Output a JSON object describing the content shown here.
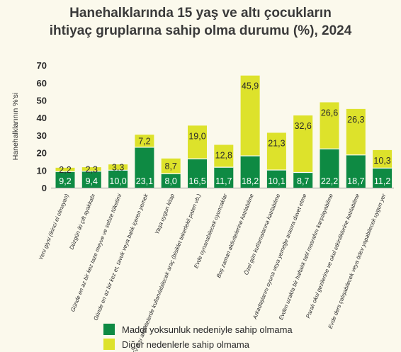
{
  "chart_data": {
    "type": "bar",
    "stacked": true,
    "title_lines": [
      "Hanehalklarında 15 yaş ve altı çocukların",
      "ihtiyaç gruplarına sahip olma durumu (%), 2024"
    ],
    "ylabel": "Hanehalklarının %'si",
    "xlabel": "",
    "ylim": [
      0,
      70
    ],
    "yticks": [
      0,
      10,
      20,
      30,
      40,
      50,
      60,
      70
    ],
    "grid": false,
    "legend_position": "bottom",
    "categories": [
      "Yeni giysi (ikinci el olmayan)",
      "Düzgün iki çift ayakkabı",
      "Günde en az bir kez taze meyve ve sebze tüketimi",
      "Günde en az bir kez et, tavuk veya balık içeren yemek",
      "Yaşa uygun kitap",
      "Ev dışı aktivitelerde kullanılabilecek araç (bisiklet tekerlekli paten vb.)",
      "Evde oynanabilecek oyuncaklar",
      "Boş zaman aktivitelerine katılabilme",
      "Özel gün kutlamalarına katılabilme",
      "Arkadaşlarını oyuna veya yemeğe arasıra davet etme",
      "Evden uzakta bir haftalık tatil masrafını karşılayabilme",
      "Paralı okul gezilerine ve okul etkinliklerine katılabilme",
      "Evde ders çalışabilecek veya ödev yapabilecek uygun yer"
    ],
    "series": [
      {
        "name": "Maddi yoksunluk nedeniyle sahip olmama",
        "color": "#0e8a43",
        "values": [
          9.2,
          9.4,
          10.0,
          23.1,
          8.0,
          16.5,
          11.7,
          18.2,
          10.1,
          8.7,
          22.2,
          18.7,
          11.2
        ],
        "labels": [
          "9,2",
          "9,4",
          "10,0",
          "23,1",
          "8,0",
          "16,5",
          "11,7",
          "18,2",
          "10,1",
          "8,7",
          "22,2",
          "18,7",
          "11,2"
        ]
      },
      {
        "name": "Diğer nedenlerle sahip olmama",
        "color": "#dde22b",
        "values": [
          2.2,
          2.3,
          3.3,
          7.2,
          8.7,
          19.0,
          12.8,
          45.9,
          21.3,
          32.6,
          26.6,
          26.3,
          10.3
        ],
        "labels": [
          "2,2",
          "2,3",
          "3,3",
          "7,2",
          "8,7",
          "19,0",
          "12,8",
          "45,9",
          "21,3",
          "32,6",
          "26,6",
          "26,3",
          "10,3"
        ]
      }
    ]
  }
}
